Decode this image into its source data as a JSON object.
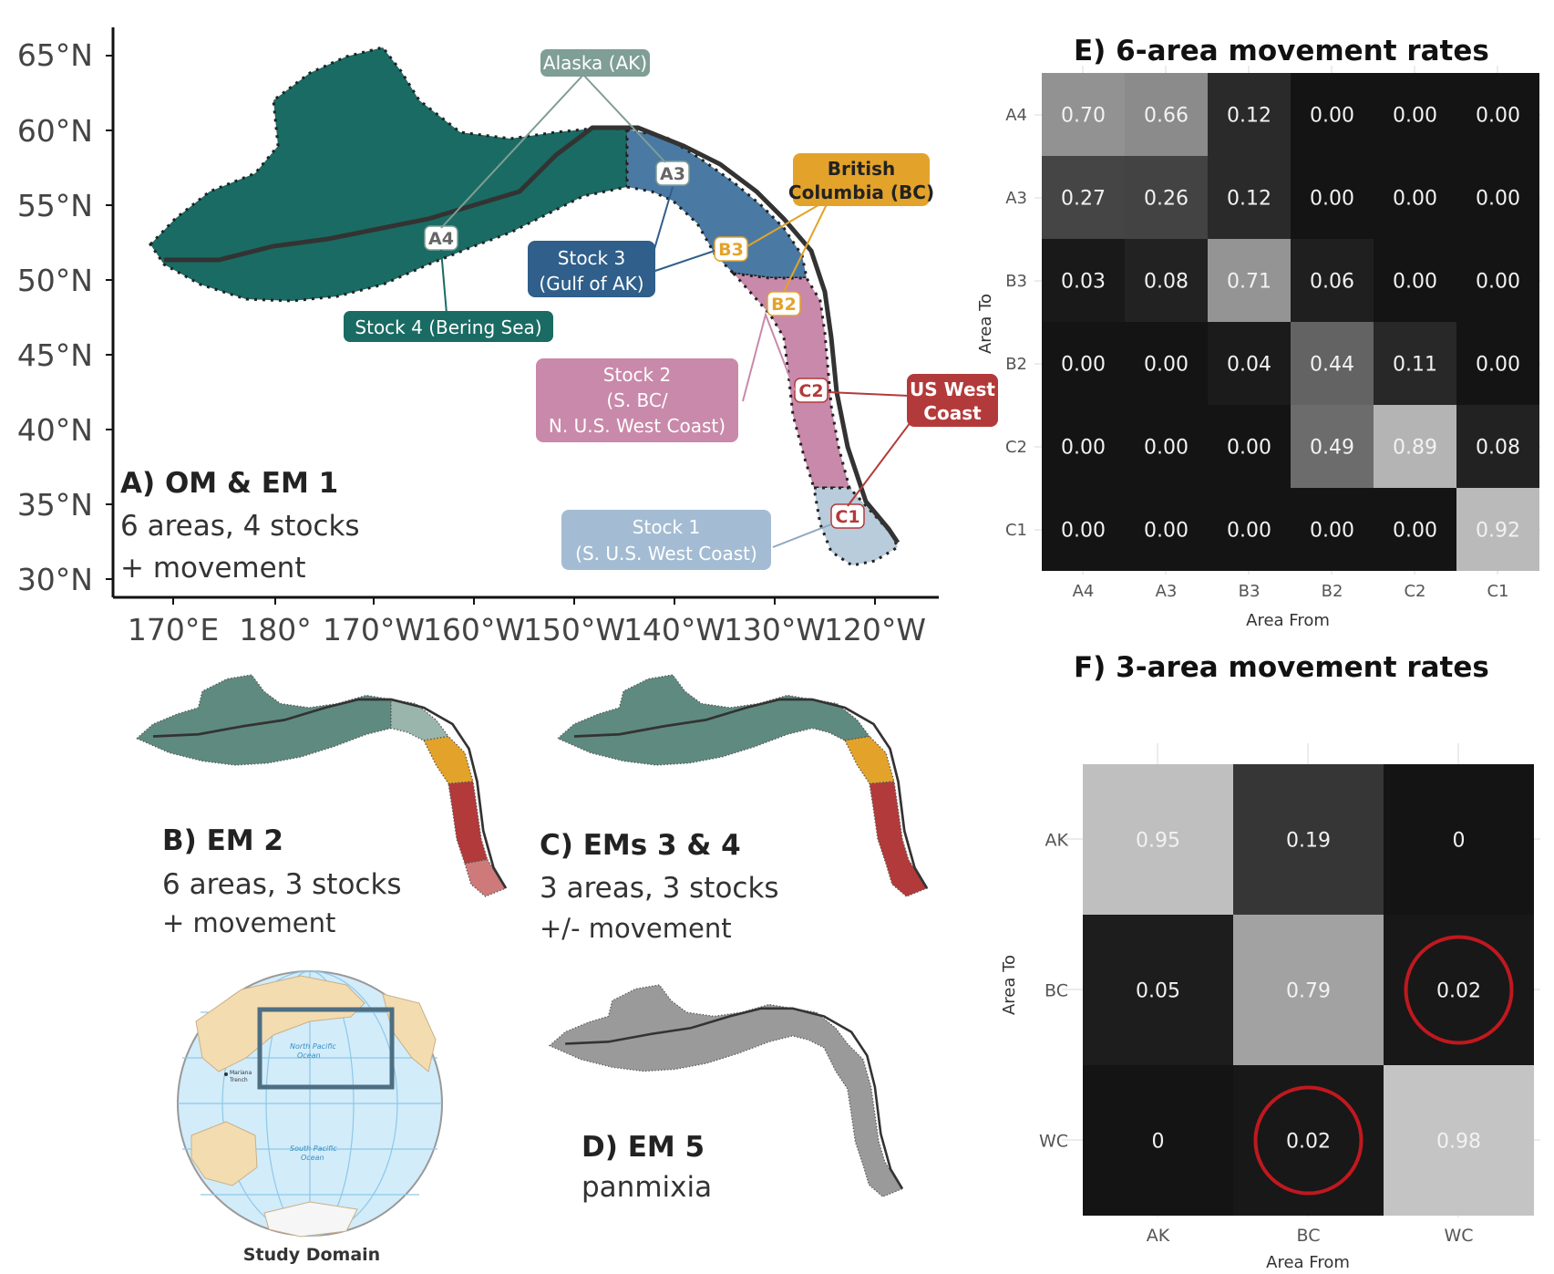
{
  "panel_a": {
    "title": "A) OM & EM 1",
    "line1": "6 areas, 4 stocks",
    "line2": "+ movement",
    "lat_ticks": [
      "65°N",
      "60°N",
      "55°N",
      "50°N",
      "45°N",
      "40°N",
      "35°N",
      "30°N"
    ],
    "lon_ticks": [
      "170°E",
      "180°",
      "170°W",
      "160°W",
      "150°W",
      "140°W",
      "130°W",
      "120°W"
    ],
    "area_tags": [
      "A4",
      "A3",
      "B3",
      "B2",
      "C2",
      "C1"
    ],
    "region_labels": {
      "alaska": "Alaska (AK)",
      "bc_line1": "British",
      "bc_line2": "Columbia (BC)",
      "uswc_line1": "US West",
      "uswc_line2": "Coast"
    },
    "stock_labels": {
      "stock4": "Stock 4 (Bering Sea)",
      "stock3_line1": "Stock 3",
      "stock3_line2": "(Gulf of AK)",
      "stock2_line1": "Stock 2",
      "stock2_line2": "(S. BC/",
      "stock2_line3": "N. U.S. West Coast)",
      "stock1_line1": "Stock 1",
      "stock1_line2": "(S. U.S. West Coast)"
    },
    "colors": {
      "stock4": "#1a6b63",
      "stock3": "#4a7aa3",
      "stock2": "#c989aa",
      "stock1": "#b8ccdc",
      "alaska": "#7f9e95",
      "bc": "#e3a32a",
      "uswc": "#b33a3a"
    }
  },
  "panel_b": {
    "title": "B) EM 2",
    "line1": "6 areas, 3 stocks",
    "line2": "+ movement"
  },
  "panel_c": {
    "title": "C) EMs 3 & 4",
    "line1": "3 areas, 3 stocks",
    "line2": "+/- movement"
  },
  "panel_d": {
    "title": "D) EM 5",
    "line1": "panmixia"
  },
  "globe": {
    "caption": "Study Domain",
    "north_pacific_1": "North Pacific",
    "north_pacific_2": "Ocean",
    "south_pacific_1": "South Pacific",
    "south_pacific_2": "Ocean",
    "mariana_1": "Mariana",
    "mariana_2": "Trench"
  },
  "chart_data": [
    {
      "type": "heatmap",
      "title": "E) 6-area movement rates",
      "xlabel": "Area From",
      "ylabel": "Area To",
      "x_categories": [
        "A4",
        "A3",
        "B3",
        "B2",
        "C2",
        "C1"
      ],
      "y_categories": [
        "A4",
        "A3",
        "B3",
        "B2",
        "C2",
        "C1"
      ],
      "values": [
        [
          "0.70",
          "0.66",
          "0.12",
          "0.00",
          "0.00",
          "0.00"
        ],
        [
          "0.27",
          "0.26",
          "0.12",
          "0.00",
          "0.00",
          "0.00"
        ],
        [
          "0.03",
          "0.08",
          "0.71",
          "0.06",
          "0.00",
          "0.00"
        ],
        [
          "0.00",
          "0.00",
          "0.04",
          "0.44",
          "0.11",
          "0.00"
        ],
        [
          "0.00",
          "0.00",
          "0.00",
          "0.49",
          "0.89",
          "0.08"
        ],
        [
          "0.00",
          "0.00",
          "0.00",
          "0.00",
          "0.00",
          "0.92"
        ]
      ]
    },
    {
      "type": "heatmap",
      "title": "F) 3-area movement rates",
      "xlabel": "Area From",
      "ylabel": "Area To",
      "x_categories": [
        "AK",
        "BC",
        "WC"
      ],
      "y_categories": [
        "AK",
        "BC",
        "WC"
      ],
      "values": [
        [
          "0.95",
          "0.19",
          "0"
        ],
        [
          "0.05",
          "0.79",
          "0.02"
        ],
        [
          "0",
          "0.02",
          "0.98"
        ]
      ],
      "highlighted_cells": [
        [
          1,
          2
        ],
        [
          2,
          1
        ]
      ],
      "highlight_color": "#c0181f"
    }
  ]
}
